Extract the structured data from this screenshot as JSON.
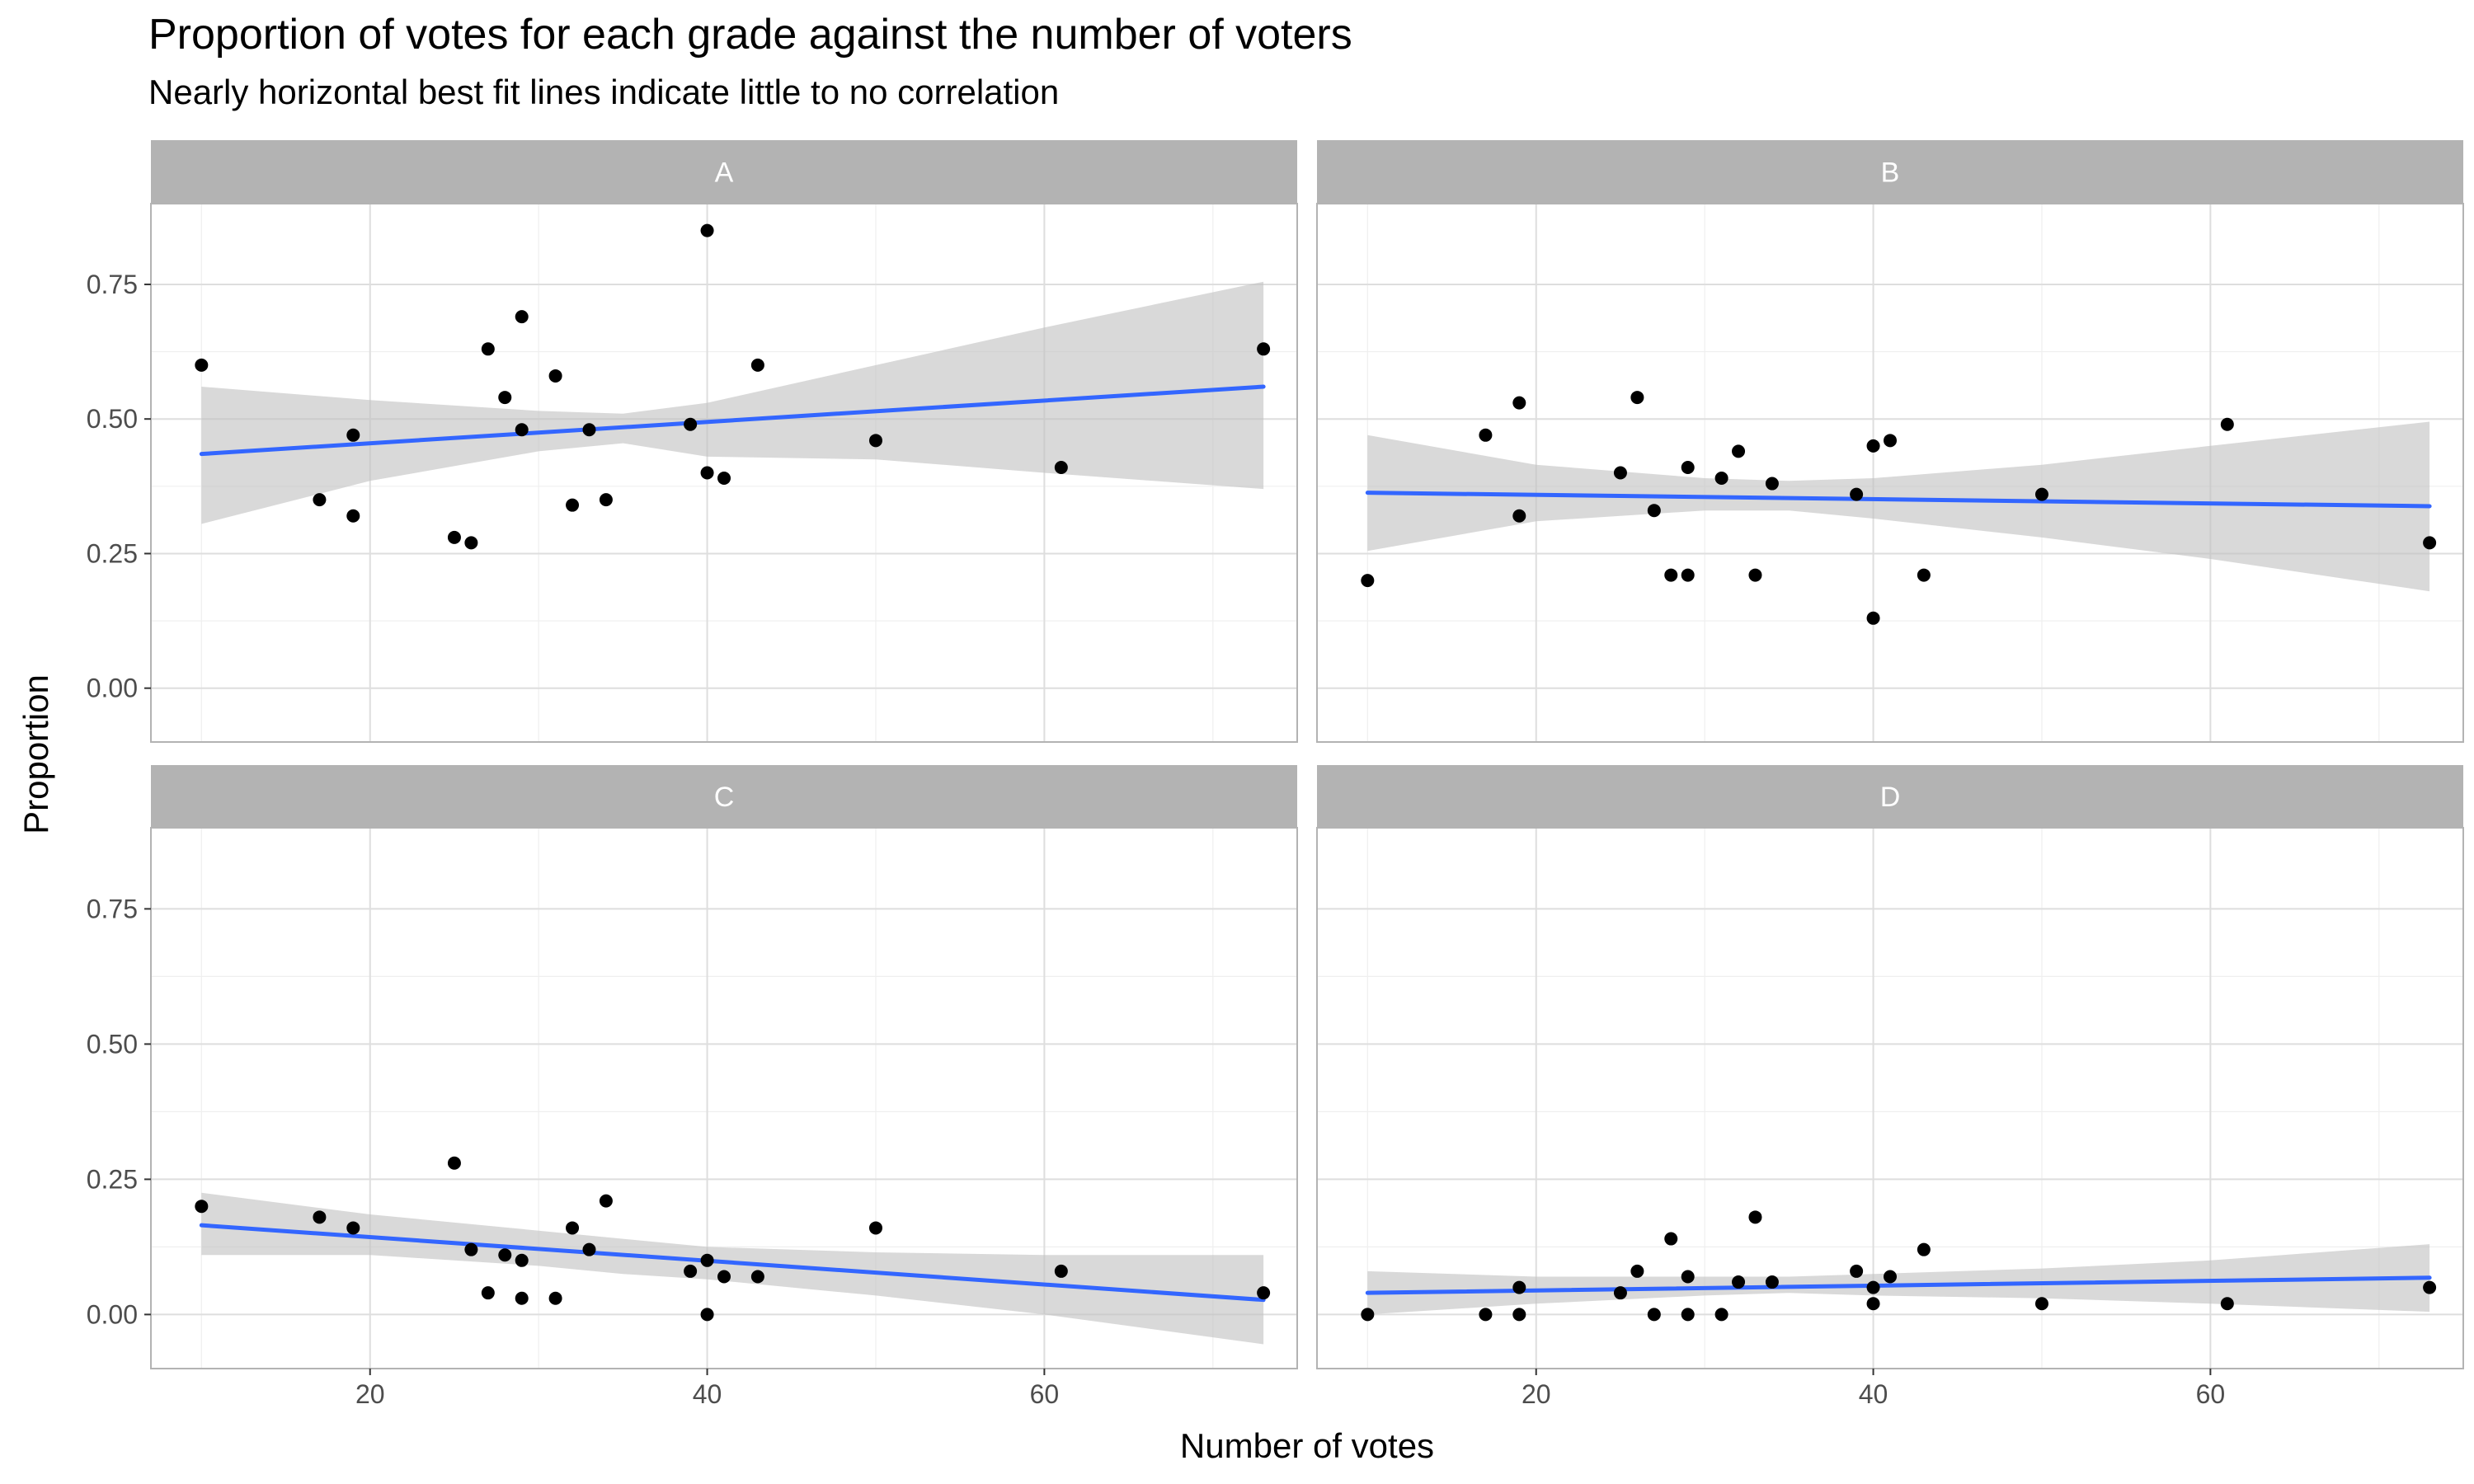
{
  "title": "Proportion of votes for each grade against the number of voters",
  "subtitle": "Nearly horizontal best fit lines indicate little to no correlation",
  "chart_data": {
    "type": "scatter",
    "title": "Proportion of votes for each grade against the number of voters",
    "subtitle": "Nearly horizontal best fit lines indicate little to no correlation",
    "xlabel": "Number of votes",
    "ylabel": "Proportion",
    "xlim": [
      7,
      75
    ],
    "ylim": [
      -0.1,
      0.9
    ],
    "x_ticks": [
      20,
      40,
      60
    ],
    "y_ticks": [
      0.0,
      0.25,
      0.5,
      0.75
    ],
    "x_tick_labels": [
      "20",
      "40",
      "60"
    ],
    "y_tick_labels": [
      "0.00",
      "0.25",
      "0.50",
      "0.75"
    ],
    "grid": true,
    "legend": "none",
    "colors": {
      "point": "#000000",
      "fit_line": "#3366ff",
      "ribbon": "#bfbfbf",
      "strip": "#b3b3b3",
      "panel_border": "#b3b3b3",
      "grid_major": "#dedede",
      "grid_minor": "#efefef"
    },
    "panels": [
      {
        "label": "A",
        "points": [
          [
            10,
            0.6
          ],
          [
            17,
            0.35
          ],
          [
            19,
            0.47
          ],
          [
            19,
            0.32
          ],
          [
            25,
            0.28
          ],
          [
            26,
            0.27
          ],
          [
            27,
            0.63
          ],
          [
            28,
            0.54
          ],
          [
            29,
            0.69
          ],
          [
            29,
            0.48
          ],
          [
            31,
            0.58
          ],
          [
            32,
            0.34
          ],
          [
            33,
            0.48
          ],
          [
            34,
            0.35
          ],
          [
            39,
            0.49
          ],
          [
            40,
            0.85
          ],
          [
            40,
            0.4
          ],
          [
            41,
            0.39
          ],
          [
            43,
            0.6
          ],
          [
            50,
            0.46
          ],
          [
            61,
            0.41
          ],
          [
            73,
            0.63
          ]
        ],
        "fit": {
          "x": [
            10,
            73
          ],
          "y": [
            0.435,
            0.56
          ]
        },
        "ribbon": {
          "x": [
            10,
            20,
            30,
            35,
            40,
            50,
            60,
            73
          ],
          "upper": [
            0.56,
            0.535,
            0.515,
            0.51,
            0.53,
            0.6,
            0.67,
            0.755
          ],
          "lower": [
            0.305,
            0.385,
            0.44,
            0.455,
            0.43,
            0.425,
            0.4,
            0.37
          ]
        }
      },
      {
        "label": "B",
        "points": [
          [
            10,
            0.2
          ],
          [
            17,
            0.47
          ],
          [
            19,
            0.53
          ],
          [
            19,
            0.32
          ],
          [
            25,
            0.4
          ],
          [
            26,
            0.54
          ],
          [
            27,
            0.33
          ],
          [
            28,
            0.21
          ],
          [
            29,
            0.41
          ],
          [
            29,
            0.21
          ],
          [
            31,
            0.39
          ],
          [
            32,
            0.44
          ],
          [
            33,
            0.21
          ],
          [
            34,
            0.38
          ],
          [
            39,
            0.36
          ],
          [
            40,
            0.45
          ],
          [
            40,
            0.13
          ],
          [
            41,
            0.46
          ],
          [
            43,
            0.21
          ],
          [
            50,
            0.36
          ],
          [
            61,
            0.49
          ],
          [
            73,
            0.27
          ]
        ],
        "fit": {
          "x": [
            10,
            73
          ],
          "y": [
            0.363,
            0.338
          ]
        },
        "ribbon": {
          "x": [
            10,
            20,
            30,
            35,
            40,
            50,
            60,
            73
          ],
          "upper": [
            0.47,
            0.415,
            0.39,
            0.385,
            0.39,
            0.415,
            0.45,
            0.495
          ],
          "lower": [
            0.255,
            0.31,
            0.33,
            0.33,
            0.315,
            0.28,
            0.24,
            0.18
          ]
        }
      },
      {
        "label": "C",
        "points": [
          [
            10,
            0.2
          ],
          [
            17,
            0.18
          ],
          [
            19,
            0.16
          ],
          [
            25,
            0.28
          ],
          [
            26,
            0.12
          ],
          [
            27,
            0.04
          ],
          [
            28,
            0.11
          ],
          [
            29,
            0.1
          ],
          [
            29,
            0.03
          ],
          [
            31,
            0.03
          ],
          [
            32,
            0.16
          ],
          [
            33,
            0.12
          ],
          [
            34,
            0.21
          ],
          [
            39,
            0.08
          ],
          [
            40,
            0.1
          ],
          [
            40,
            0.0
          ],
          [
            41,
            0.07
          ],
          [
            43,
            0.07
          ],
          [
            50,
            0.16
          ],
          [
            61,
            0.08
          ],
          [
            73,
            0.04
          ]
        ],
        "fit": {
          "x": [
            10,
            73
          ],
          "y": [
            0.165,
            0.027
          ]
        },
        "ribbon": {
          "x": [
            10,
            20,
            30,
            35,
            40,
            50,
            60,
            73
          ],
          "upper": [
            0.225,
            0.185,
            0.155,
            0.14,
            0.125,
            0.115,
            0.11,
            0.11
          ],
          "lower": [
            0.11,
            0.11,
            0.09,
            0.075,
            0.065,
            0.035,
            0.0,
            -0.055
          ]
        }
      },
      {
        "label": "D",
        "points": [
          [
            10,
            0.0
          ],
          [
            17,
            0.0
          ],
          [
            19,
            0.05
          ],
          [
            19,
            0.0
          ],
          [
            25,
            0.04
          ],
          [
            26,
            0.08
          ],
          [
            27,
            0.0
          ],
          [
            28,
            0.14
          ],
          [
            29,
            0.07
          ],
          [
            29,
            0.0
          ],
          [
            31,
            0.0
          ],
          [
            32,
            0.06
          ],
          [
            33,
            0.18
          ],
          [
            34,
            0.06
          ],
          [
            39,
            0.08
          ],
          [
            40,
            0.05
          ],
          [
            40,
            0.02
          ],
          [
            41,
            0.07
          ],
          [
            43,
            0.12
          ],
          [
            50,
            0.02
          ],
          [
            61,
            0.02
          ],
          [
            73,
            0.05
          ]
        ],
        "fit": {
          "x": [
            10,
            73
          ],
          "y": [
            0.04,
            0.068
          ]
        },
        "ribbon": {
          "x": [
            10,
            20,
            30,
            35,
            40,
            50,
            60,
            73
          ],
          "upper": [
            0.08,
            0.07,
            0.07,
            0.07,
            0.075,
            0.085,
            0.1,
            0.13
          ],
          "lower": [
            0.0,
            0.02,
            0.035,
            0.04,
            0.035,
            0.03,
            0.02,
            0.005
          ]
        }
      }
    ]
  }
}
